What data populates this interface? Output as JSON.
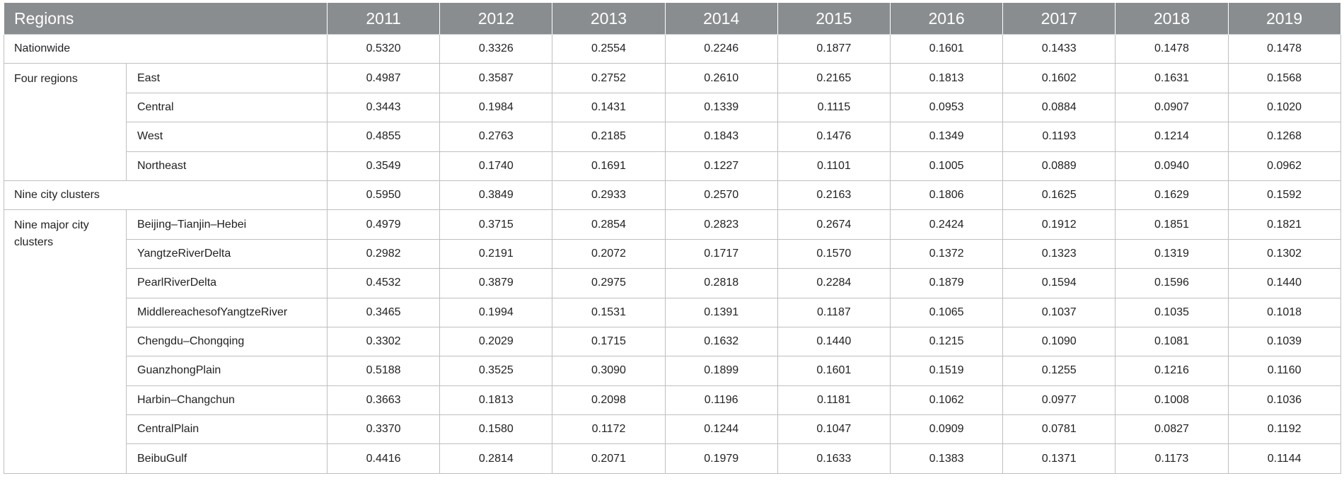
{
  "header": {
    "region_label": "Regions",
    "years": [
      "2011",
      "2012",
      "2013",
      "2014",
      "2015",
      "2016",
      "2017",
      "2018",
      "2019"
    ]
  },
  "rows": {
    "nationwide": {
      "label": "Nationwide",
      "values": [
        "0.5320",
        "0.3326",
        "0.2554",
        "0.2246",
        "0.1877",
        "0.1601",
        "0.1433",
        "0.1478",
        "0.1478"
      ]
    },
    "four_regions": {
      "label": "Four regions",
      "items": [
        {
          "name": "East",
          "values": [
            "0.4987",
            "0.3587",
            "0.2752",
            "0.2610",
            "0.2165",
            "0.1813",
            "0.1602",
            "0.1631",
            "0.1568"
          ]
        },
        {
          "name": "Central",
          "values": [
            "0.3443",
            "0.1984",
            "0.1431",
            "0.1339",
            "0.1115",
            "0.0953",
            "0.0884",
            "0.0907",
            "0.1020"
          ]
        },
        {
          "name": "West",
          "values": [
            "0.4855",
            "0.2763",
            "0.2185",
            "0.1843",
            "0.1476",
            "0.1349",
            "0.1193",
            "0.1214",
            "0.1268"
          ]
        },
        {
          "name": "Northeast",
          "values": [
            "0.3549",
            "0.1740",
            "0.1691",
            "0.1227",
            "0.1101",
            "0.1005",
            "0.0889",
            "0.0940",
            "0.0962"
          ]
        }
      ]
    },
    "nine_city_clusters": {
      "label": "Nine city clusters",
      "values": [
        "0.5950",
        "0.3849",
        "0.2933",
        "0.2570",
        "0.2163",
        "0.1806",
        "0.1625",
        "0.1629",
        "0.1592"
      ]
    },
    "nine_major": {
      "label": "Nine major city clusters",
      "items": [
        {
          "name": "Beijing–Tianjin–Hebei",
          "values": [
            "0.4979",
            "0.3715",
            "0.2854",
            "0.2823",
            "0.2674",
            "0.2424",
            "0.1912",
            "0.1851",
            "0.1821"
          ]
        },
        {
          "name": "YangtzeRiverDelta",
          "values": [
            "0.2982",
            "0.2191",
            "0.2072",
            "0.1717",
            "0.1570",
            "0.1372",
            "0.1323",
            "0.1319",
            "0.1302"
          ]
        },
        {
          "name": "PearlRiverDelta",
          "values": [
            "0.4532",
            "0.3879",
            "0.2975",
            "0.2818",
            "0.2284",
            "0.1879",
            "0.1594",
            "0.1596",
            "0.1440"
          ]
        },
        {
          "name": "MiddlereachesofYangtzeRiver",
          "values": [
            "0.3465",
            "0.1994",
            "0.1531",
            "0.1391",
            "0.1187",
            "0.1065",
            "0.1037",
            "0.1035",
            "0.1018"
          ]
        },
        {
          "name": "Chengdu–Chongqing",
          "values": [
            "0.3302",
            "0.2029",
            "0.1715",
            "0.1632",
            "0.1440",
            "0.1215",
            "0.1090",
            "0.1081",
            "0.1039"
          ]
        },
        {
          "name": "GuanzhongPlain",
          "values": [
            "0.5188",
            "0.3525",
            "0.3090",
            "0.1899",
            "0.1601",
            "0.1519",
            "0.1255",
            "0.1216",
            "0.1160"
          ]
        },
        {
          "name": "Harbin–Changchun",
          "values": [
            "0.3663",
            "0.1813",
            "0.2098",
            "0.1196",
            "0.1181",
            "0.1062",
            "0.0977",
            "0.1008",
            "0.1036"
          ]
        },
        {
          "name": "CentralPlain",
          "values": [
            "0.3370",
            "0.1580",
            "0.1172",
            "0.1244",
            "0.1047",
            "0.0909",
            "0.0781",
            "0.0827",
            "0.1192"
          ]
        },
        {
          "name": "BeibuGulf",
          "values": [
            "0.4416",
            "0.2814",
            "0.2071",
            "0.1979",
            "0.1633",
            "0.1383",
            "0.1371",
            "0.1173",
            "0.1144"
          ]
        }
      ]
    }
  },
  "colors": {
    "header_bg": "#8a8d8f",
    "header_text": "#ffffff",
    "border": "#bfbfbf",
    "text": "#222222"
  }
}
